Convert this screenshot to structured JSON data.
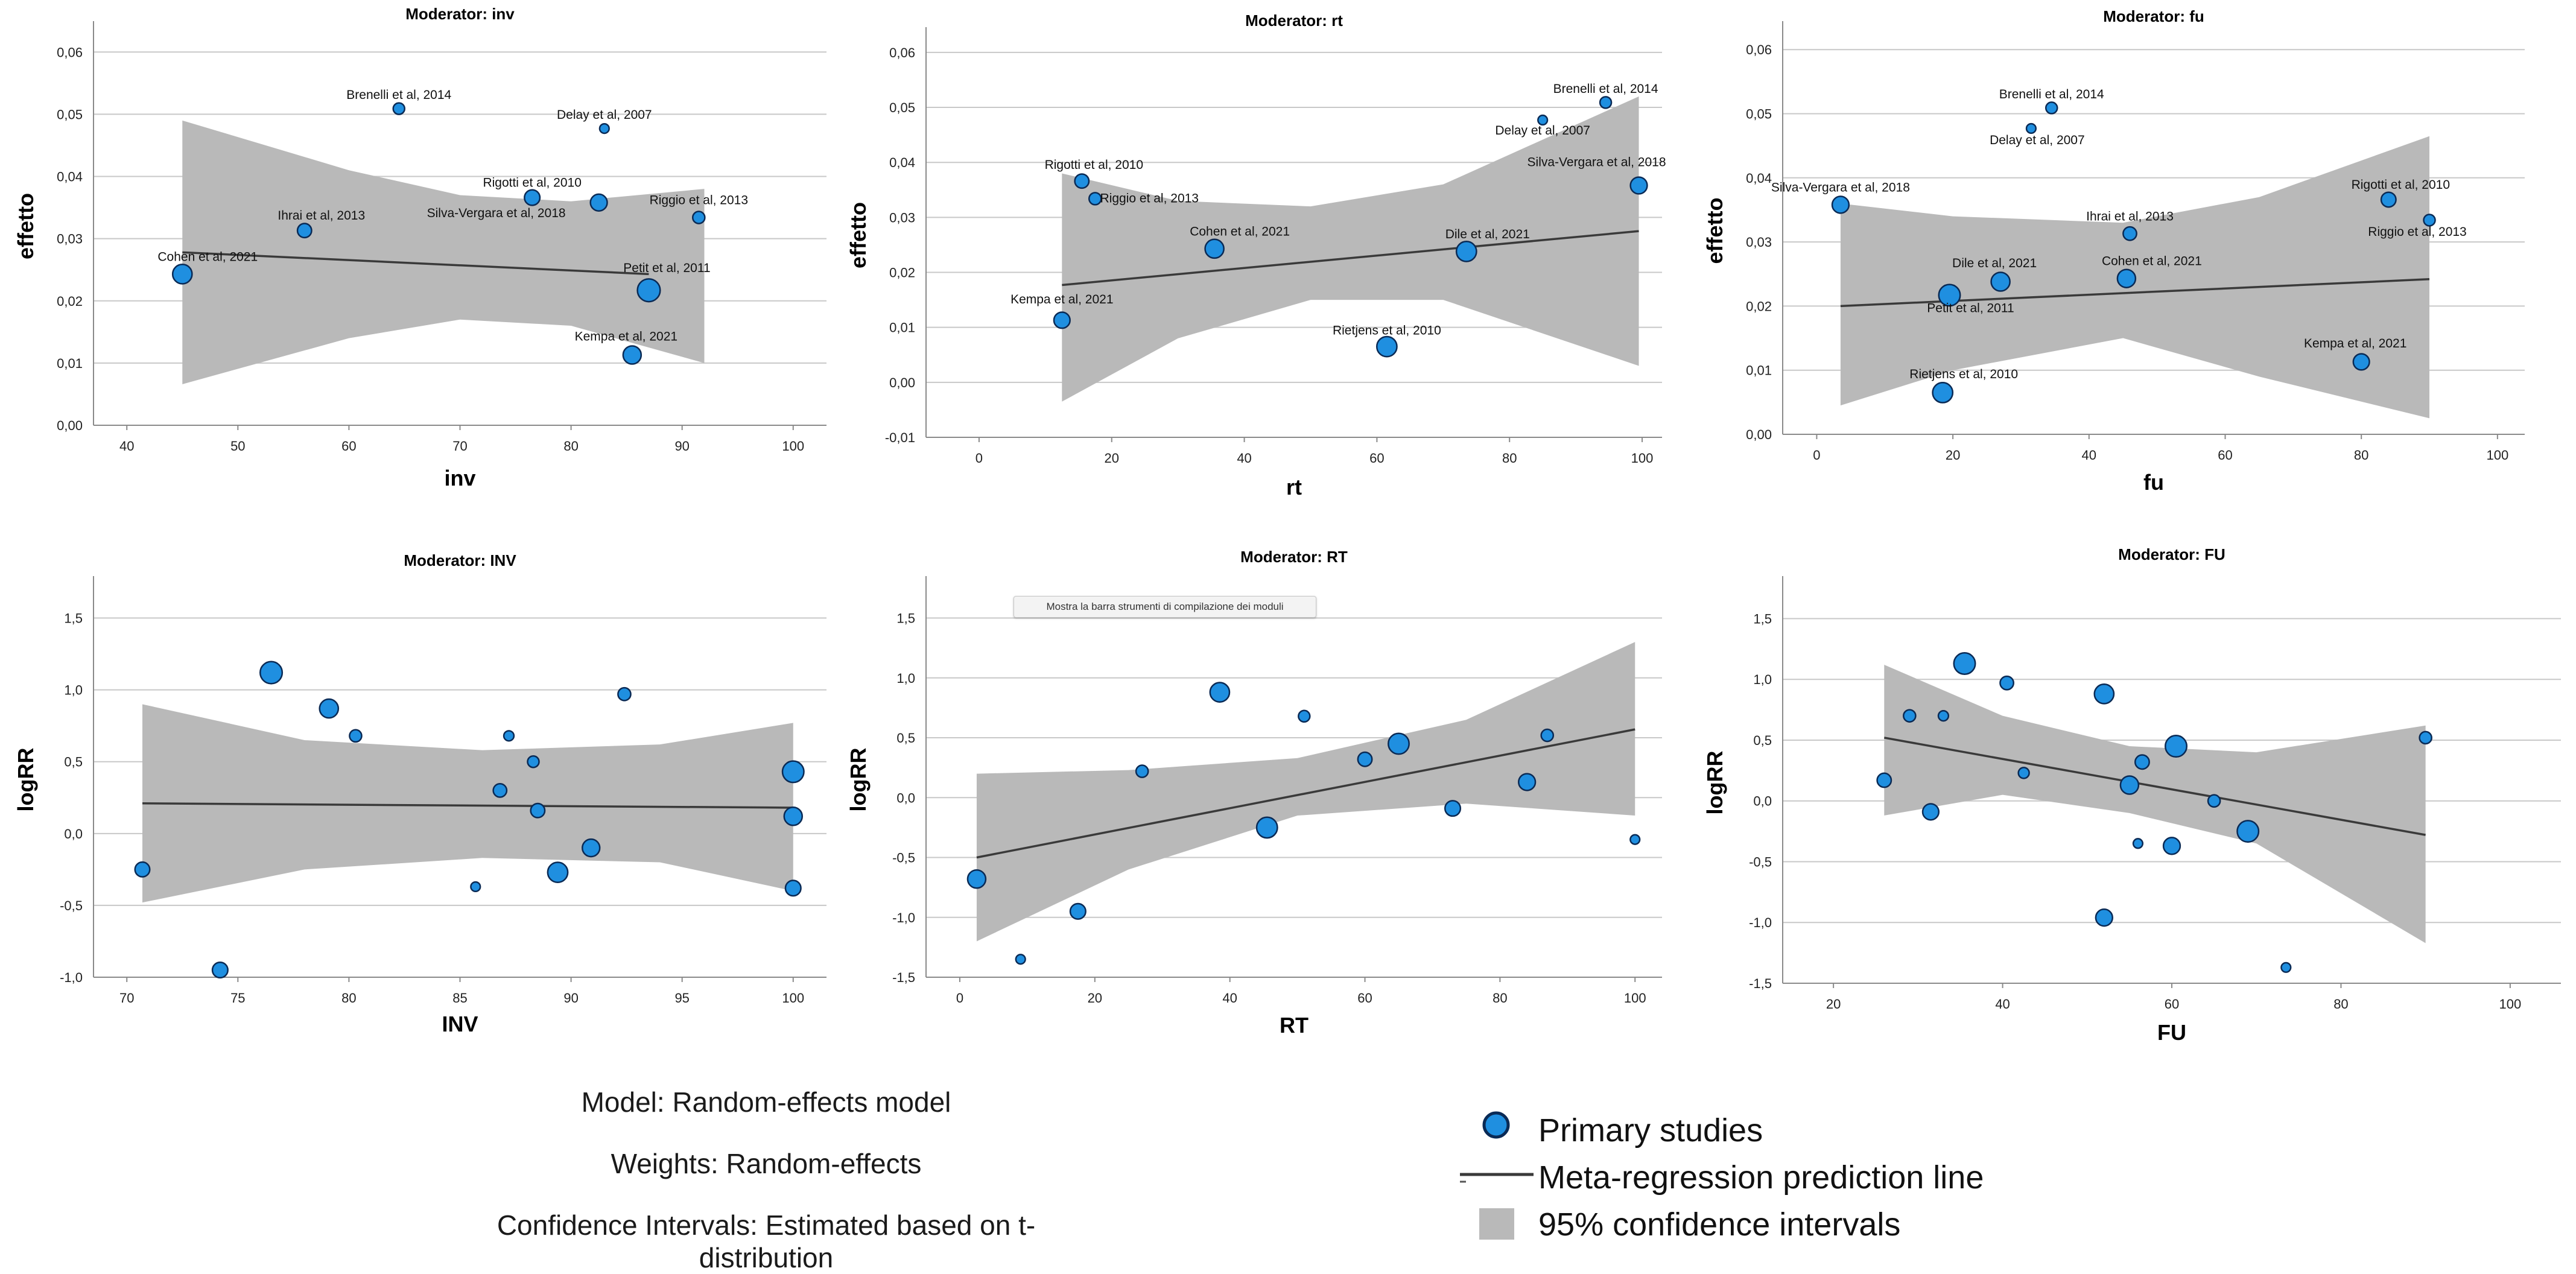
{
  "chart_data": [
    {
      "type": "scatter",
      "title": "Moderator: inv",
      "xlabel": "inv",
      "ylabel": "effetto",
      "xlim": [
        37,
        103
      ],
      "ylim": [
        0,
        0.064
      ],
      "xticks": [
        40,
        50,
        60,
        70,
        80,
        90,
        100
      ],
      "yticks": [
        0,
        0.01,
        0.02,
        0.03,
        0.04,
        0.05,
        0.06
      ],
      "ytick_labels": [
        "0,00",
        "0,01",
        "0,02",
        "0,03",
        "0,04",
        "0,05",
        "0,06"
      ],
      "points": [
        {
          "x": 45,
          "y": 0.0243,
          "w": 2.2,
          "label": "Cohen et al, 2021"
        },
        {
          "x": 56,
          "y": 0.0313,
          "w": 1.4,
          "label": "Ihrai et al, 2013"
        },
        {
          "x": 64.5,
          "y": 0.0509,
          "w": 1.0,
          "label": "Brenelli et al, 2014"
        },
        {
          "x": 76.5,
          "y": 0.0366,
          "w": 1.6,
          "label": "Rigotti et al, 2010"
        },
        {
          "x": 82.5,
          "y": 0.0358,
          "w": 1.8,
          "label": "Silva-Vergara et al, 2018"
        },
        {
          "x": 83,
          "y": 0.0477,
          "w": 0.7,
          "label": "Delay et al, 2007"
        },
        {
          "x": 85.5,
          "y": 0.0113,
          "w": 2.0,
          "label": "Kempa et al, 2021"
        },
        {
          "x": 87,
          "y": 0.0217,
          "w": 2.7,
          "label": "Petit et al, 2011"
        },
        {
          "x": 91.5,
          "y": 0.0334,
          "w": 1.1,
          "label": "Riggio et al, 2013"
        }
      ],
      "fit": {
        "x": [
          45,
          87
        ],
        "y": [
          0.0278,
          0.0243
        ]
      },
      "ci": {
        "x": [
          45,
          60,
          70,
          80,
          92
        ],
        "upper": [
          0.049,
          0.041,
          0.037,
          0.036,
          0.038
        ],
        "lower": [
          0.0066,
          0.014,
          0.017,
          0.016,
          0.01
        ]
      }
    },
    {
      "type": "scatter",
      "title": "Moderator: rt",
      "xlabel": "rt",
      "ylabel": "effetto",
      "xlim": [
        -8,
        103
      ],
      "ylim": [
        -0.01,
        0.0635
      ],
      "xticks": [
        0,
        20,
        40,
        60,
        80,
        100
      ],
      "yticks": [
        -0.01,
        0,
        0.01,
        0.02,
        0.03,
        0.04,
        0.05,
        0.06
      ],
      "ytick_labels": [
        "-0,01",
        "0,00",
        "0,01",
        "0,02",
        "0,03",
        "0,04",
        "0,05",
        "0,06"
      ],
      "points": [
        {
          "x": 12.5,
          "y": 0.0113,
          "w": 1.7,
          "label": "Kempa et al, 2021"
        },
        {
          "x": 15.5,
          "y": 0.0366,
          "w": 1.4,
          "label": "Rigotti et al, 2010"
        },
        {
          "x": 17.5,
          "y": 0.0334,
          "w": 1.1,
          "label": "Riggio et al, 2013"
        },
        {
          "x": 35.5,
          "y": 0.0243,
          "w": 2.1,
          "label": "Cohen et al, 2021"
        },
        {
          "x": 61.5,
          "y": 0.0065,
          "w": 2.3,
          "label": "Rietjens et al, 2010"
        },
        {
          "x": 73.5,
          "y": 0.0238,
          "w": 2.3,
          "label": "Dile et al, 2021"
        },
        {
          "x": 85,
          "y": 0.0477,
          "w": 0.7,
          "label": "Delay et al, 2007"
        },
        {
          "x": 94.5,
          "y": 0.0509,
          "w": 1.0,
          "label": "Brenelli et al, 2014"
        },
        {
          "x": 99.5,
          "y": 0.0358,
          "w": 1.8,
          "label": "Silva-Vergara et al, 2018"
        }
      ],
      "fit": {
        "x": [
          12.5,
          99.5
        ],
        "y": [
          0.0177,
          0.0275
        ]
      },
      "ci": {
        "x": [
          12.5,
          30,
          50,
          70,
          99.5
        ],
        "upper": [
          0.038,
          0.033,
          0.032,
          0.036,
          0.052
        ],
        "lower": [
          -0.0035,
          0.008,
          0.015,
          0.015,
          0.003
        ]
      }
    },
    {
      "type": "scatter",
      "title": "Moderator: fu",
      "xlabel": "fu",
      "ylabel": "effetto",
      "xlim": [
        -5,
        104
      ],
      "ylim": [
        0,
        0.0635
      ],
      "xticks": [
        0,
        20,
        40,
        60,
        80,
        100
      ],
      "yticks": [
        0,
        0.01,
        0.02,
        0.03,
        0.04,
        0.05,
        0.06
      ],
      "ytick_labels": [
        "0,00",
        "0,01",
        "0,02",
        "0,03",
        "0,04",
        "0,05",
        "0,06"
      ],
      "points": [
        {
          "x": 3.5,
          "y": 0.0358,
          "w": 1.8,
          "label": "Silva-Vergara et al, 2018"
        },
        {
          "x": 18.5,
          "y": 0.0065,
          "w": 2.3,
          "label": "Rietjens et al, 2010"
        },
        {
          "x": 19.5,
          "y": 0.0217,
          "w": 2.5,
          "label": "Petit et al, 2011"
        },
        {
          "x": 27,
          "y": 0.0238,
          "w": 2.1,
          "label": "Dile et al, 2021"
        },
        {
          "x": 31.5,
          "y": 0.0477,
          "w": 0.7,
          "label": "Delay et al, 2007"
        },
        {
          "x": 34.5,
          "y": 0.0509,
          "w": 1.0,
          "label": "Brenelli et al, 2014"
        },
        {
          "x": 46,
          "y": 0.0313,
          "w": 1.3,
          "label": "Ihrai et al, 2013"
        },
        {
          "x": 45.5,
          "y": 0.0243,
          "w": 2.0,
          "label": "Cohen et al, 2021"
        },
        {
          "x": 80,
          "y": 0.0113,
          "w": 1.7,
          "label": "Kempa et al, 2021"
        },
        {
          "x": 84,
          "y": 0.0366,
          "w": 1.5,
          "label": "Rigotti et al, 2010"
        },
        {
          "x": 90,
          "y": 0.0334,
          "w": 1.0,
          "label": "Riggio et al, 2013"
        }
      ],
      "fit": {
        "x": [
          3.5,
          90
        ],
        "y": [
          0.02,
          0.0242
        ]
      },
      "ci": {
        "x": [
          3.5,
          20,
          45,
          65,
          90
        ],
        "upper": [
          0.036,
          0.034,
          0.033,
          0.037,
          0.0465
        ],
        "lower": [
          0.0045,
          0.01,
          0.015,
          0.009,
          0.0025
        ]
      }
    },
    {
      "type": "scatter",
      "title": "Moderator: INV",
      "xlabel": "INV",
      "ylabel": "logRR",
      "xlim": [
        68.5,
        101.5
      ],
      "ylim": [
        -1,
        1.75
      ],
      "xticks": [
        70,
        75,
        80,
        85,
        90,
        95,
        100
      ],
      "yticks": [
        -1,
        -0.5,
        0,
        0.5,
        1,
        1.5
      ],
      "ytick_labels": [
        "-1,0",
        "-0,5",
        "0,0",
        "0,5",
        "1,0",
        "1,5"
      ],
      "points": [
        {
          "x": 70.7,
          "y": -0.25,
          "w": 1.5
        },
        {
          "x": 74.2,
          "y": -0.95,
          "w": 1.6
        },
        {
          "x": 76.5,
          "y": 1.12,
          "w": 2.6
        },
        {
          "x": 79.1,
          "y": 0.87,
          "w": 2.1
        },
        {
          "x": 80.3,
          "y": 0.68,
          "w": 1.1
        },
        {
          "x": 85.7,
          "y": -0.37,
          "w": 0.7
        },
        {
          "x": 86.8,
          "y": 0.3,
          "w": 1.3
        },
        {
          "x": 87.2,
          "y": 0.68,
          "w": 0.8
        },
        {
          "x": 88.3,
          "y": 0.5,
          "w": 1.0
        },
        {
          "x": 88.5,
          "y": 0.16,
          "w": 1.4
        },
        {
          "x": 89.4,
          "y": -0.27,
          "w": 2.3
        },
        {
          "x": 90.9,
          "y": -0.1,
          "w": 1.9
        },
        {
          "x": 92.4,
          "y": 0.97,
          "w": 1.2
        },
        {
          "x": 100,
          "y": 0.43,
          "w": 2.5
        },
        {
          "x": 100,
          "y": 0.12,
          "w": 2.0
        },
        {
          "x": 100,
          "y": -0.38,
          "w": 1.6
        }
      ],
      "fit": {
        "x": [
          70.7,
          100
        ],
        "y": [
          0.21,
          0.18
        ]
      },
      "ci": {
        "x": [
          70.7,
          78,
          86,
          94,
          100
        ],
        "upper": [
          0.9,
          0.65,
          0.58,
          0.62,
          0.77
        ],
        "lower": [
          -0.48,
          -0.25,
          -0.17,
          -0.2,
          -0.4
        ]
      }
    },
    {
      "type": "scatter",
      "title": "Moderator: RT",
      "xlabel": "RT",
      "ylabel": "logRR",
      "xlim": [
        -5,
        104
      ],
      "ylim": [
        -1.5,
        1.8
      ],
      "xticks": [
        0,
        20,
        40,
        60,
        80,
        100
      ],
      "yticks": [
        -1.5,
        -1,
        -0.5,
        0,
        0.5,
        1,
        1.5
      ],
      "ytick_labels": [
        "-1,5",
        "-1,0",
        "-0,5",
        "0,0",
        "0,5",
        "1,0",
        "1,5"
      ],
      "points": [
        {
          "x": 2.5,
          "y": -0.68,
          "w": 2.0
        },
        {
          "x": 9,
          "y": -1.35,
          "w": 0.7
        },
        {
          "x": 17.5,
          "y": -0.95,
          "w": 1.6
        },
        {
          "x": 27,
          "y": 0.22,
          "w": 1.1
        },
        {
          "x": 38.5,
          "y": 0.88,
          "w": 2.2
        },
        {
          "x": 45.5,
          "y": -0.25,
          "w": 2.4
        },
        {
          "x": 51,
          "y": 0.68,
          "w": 1.0
        },
        {
          "x": 60,
          "y": 0.32,
          "w": 1.4
        },
        {
          "x": 65,
          "y": 0.45,
          "w": 2.4
        },
        {
          "x": 73,
          "y": -0.09,
          "w": 1.6
        },
        {
          "x": 84,
          "y": 0.13,
          "w": 1.8
        },
        {
          "x": 87,
          "y": 0.52,
          "w": 1.1
        },
        {
          "x": 100,
          "y": -0.35,
          "w": 0.7
        }
      ],
      "fit": {
        "x": [
          2.5,
          100
        ],
        "y": [
          -0.5,
          0.57
        ]
      },
      "ci": {
        "x": [
          2.5,
          25,
          50,
          75,
          100
        ],
        "upper": [
          0.2,
          0.23,
          0.33,
          0.65,
          1.3
        ],
        "lower": [
          -1.2,
          -0.6,
          -0.15,
          -0.05,
          -0.15
        ]
      }
    },
    {
      "type": "scatter",
      "title": "Moderator: FU",
      "xlabel": "FU",
      "ylabel": "logRR",
      "xlim": [
        14,
        106
      ],
      "ylim": [
        -1.5,
        1.8
      ],
      "xticks": [
        20,
        40,
        60,
        80,
        100
      ],
      "yticks": [
        -1.5,
        -1,
        -0.5,
        0,
        0.5,
        1,
        1.5
      ],
      "ytick_labels": [
        "-1,5",
        "-1,0",
        "-0,5",
        "0,0",
        "0,5",
        "1,0",
        "1,5"
      ],
      "points": [
        {
          "x": 26,
          "y": 0.17,
          "w": 1.4
        },
        {
          "x": 29,
          "y": 0.7,
          "w": 1.1
        },
        {
          "x": 31.5,
          "y": -0.09,
          "w": 1.7
        },
        {
          "x": 33,
          "y": 0.7,
          "w": 0.8
        },
        {
          "x": 35.5,
          "y": 1.13,
          "w": 2.5
        },
        {
          "x": 40.5,
          "y": 0.97,
          "w": 1.3
        },
        {
          "x": 42.5,
          "y": 0.23,
          "w": 0.9
        },
        {
          "x": 52,
          "y": 0.88,
          "w": 2.2
        },
        {
          "x": 52,
          "y": -0.96,
          "w": 1.8
        },
        {
          "x": 55,
          "y": 0.13,
          "w": 2.0
        },
        {
          "x": 56,
          "y": -0.35,
          "w": 0.7
        },
        {
          "x": 56.5,
          "y": 0.32,
          "w": 1.4
        },
        {
          "x": 60,
          "y": -0.37,
          "w": 1.8
        },
        {
          "x": 60.5,
          "y": 0.45,
          "w": 2.5
        },
        {
          "x": 65,
          "y": 0.0,
          "w": 1.1
        },
        {
          "x": 69,
          "y": -0.25,
          "w": 2.5
        },
        {
          "x": 73.5,
          "y": -1.37,
          "w": 0.7
        },
        {
          "x": 90,
          "y": 0.52,
          "w": 1.1
        }
      ],
      "fit": {
        "x": [
          26,
          90
        ],
        "y": [
          0.52,
          -0.28
        ]
      },
      "ci": {
        "x": [
          26,
          40,
          55,
          70,
          90
        ],
        "upper": [
          1.12,
          0.7,
          0.45,
          0.4,
          0.62
        ],
        "lower": [
          -0.12,
          0.05,
          -0.1,
          -0.35,
          -1.17
        ]
      }
    }
  ],
  "tooltip": "Mostra la barra strumenti di compilazione dei moduli",
  "footer": {
    "model": "Model: Random-effects model",
    "weights": "Weights: Random-effects",
    "ci": "Confidence Intervals: Estimated based on t-distribution"
  },
  "legend": {
    "primary_studies": "Primary studies",
    "prediction_line": "Meta-regression prediction line",
    "confidence_intervals": "95% confidence intervals"
  },
  "colors": {
    "point_fill": "#1f8fe0",
    "point_stroke": "#0a2a55",
    "ci_band": "#b9b9b9",
    "fit_line": "#3a3a3a",
    "gridline": "#c8c8c8",
    "axis": "#8a8a8a"
  }
}
